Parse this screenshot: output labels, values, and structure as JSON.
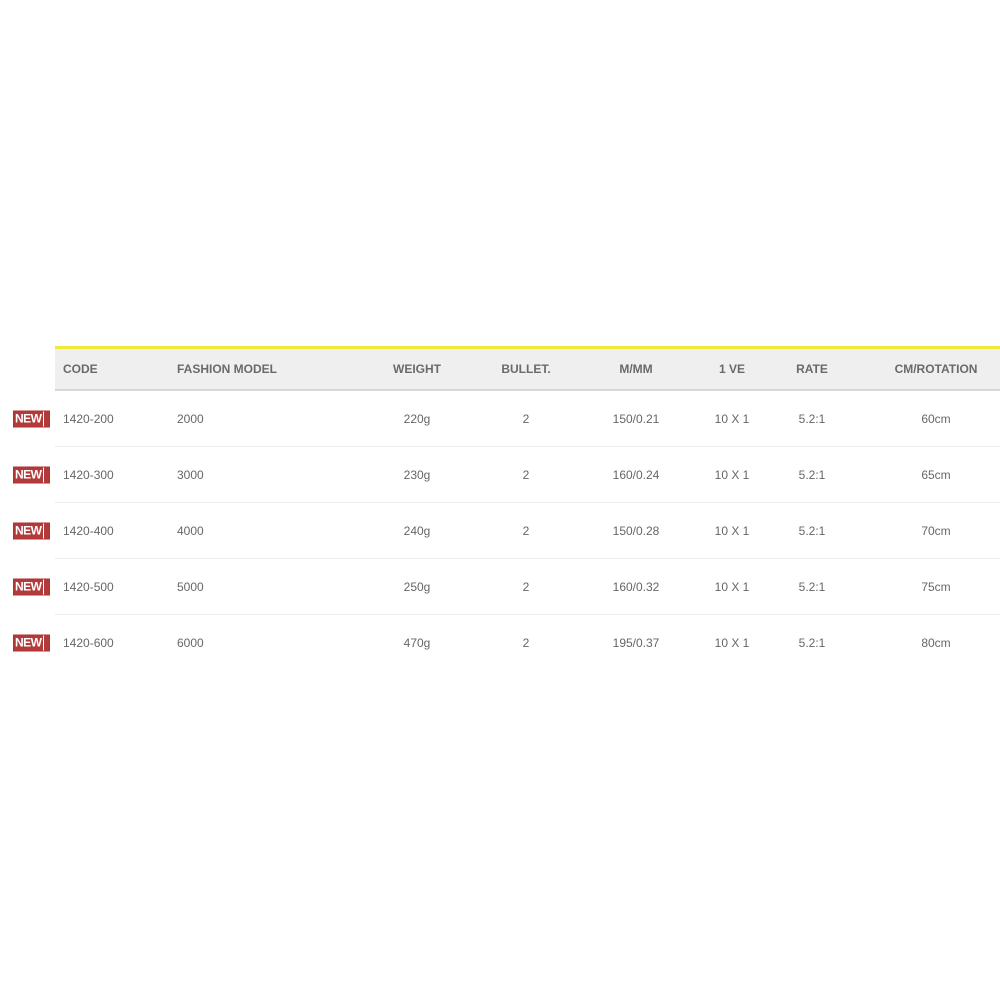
{
  "headers": [
    "CODE",
    "FASHION MODEL",
    "WEIGHT",
    "BULLET.",
    "M/MM",
    "1 VE",
    "RATE",
    "CM/ROTATION"
  ],
  "badge": {
    "label": "NEW",
    "color": "#b33a3a"
  },
  "accent_color": "#f2ea3a",
  "rows": [
    [
      "1420-200",
      "2000",
      "220g",
      "2",
      "150/0.21",
      "10 X 1",
      "5.2:1",
      "60cm"
    ],
    [
      "1420-300",
      "3000",
      "230g",
      "2",
      "160/0.24",
      "10 X 1",
      "5.2:1",
      "65cm"
    ],
    [
      "1420-400",
      "4000",
      "240g",
      "2",
      "150/0.28",
      "10 X 1",
      "5.2:1",
      "70cm"
    ],
    [
      "1420-500",
      "5000",
      "250g",
      "2",
      "160/0.32",
      "10 X 1",
      "5.2:1",
      "75cm"
    ],
    [
      "1420-600",
      "6000",
      "470g",
      "2",
      "195/0.37",
      "10 X 1",
      "5.2:1",
      "80cm"
    ]
  ]
}
